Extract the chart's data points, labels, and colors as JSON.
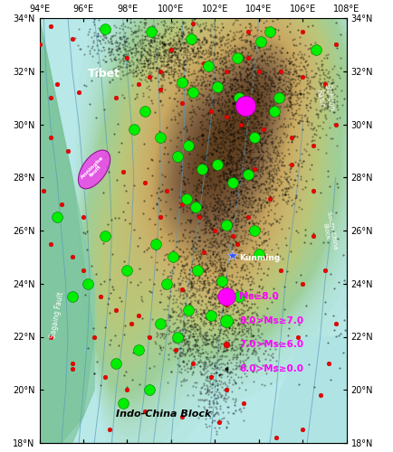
{
  "lon_min": 94,
  "lon_max": 108,
  "lat_min": 18,
  "lat_max": 34,
  "xticks": [
    94,
    96,
    98,
    100,
    102,
    104,
    106,
    108
  ],
  "yticks": [
    18,
    20,
    22,
    24,
    26,
    28,
    30,
    32,
    34
  ],
  "ms8_earthquakes": [
    [
      103.4,
      30.7
    ]
  ],
  "ms7_earthquakes": [
    [
      97.0,
      33.6
    ],
    [
      99.1,
      33.5
    ],
    [
      100.9,
      33.2
    ],
    [
      104.1,
      33.1
    ],
    [
      106.6,
      32.8
    ],
    [
      100.5,
      31.6
    ],
    [
      101.0,
      31.2
    ],
    [
      102.1,
      31.4
    ],
    [
      103.1,
      31.0
    ],
    [
      104.9,
      31.0
    ],
    [
      104.7,
      30.5
    ],
    [
      103.8,
      29.5
    ],
    [
      98.3,
      29.8
    ],
    [
      99.5,
      29.5
    ],
    [
      100.3,
      28.8
    ],
    [
      101.4,
      28.3
    ],
    [
      102.1,
      28.5
    ],
    [
      103.5,
      28.1
    ],
    [
      100.7,
      27.2
    ],
    [
      101.1,
      26.9
    ],
    [
      102.5,
      26.2
    ],
    [
      103.8,
      26.0
    ],
    [
      99.3,
      25.5
    ],
    [
      100.1,
      25.0
    ],
    [
      101.2,
      24.5
    ],
    [
      102.3,
      24.1
    ],
    [
      103.1,
      23.5
    ],
    [
      100.8,
      23.0
    ],
    [
      99.5,
      22.5
    ],
    [
      100.3,
      22.0
    ],
    [
      98.5,
      21.5
    ],
    [
      97.5,
      21.0
    ],
    [
      99.0,
      20.0
    ],
    [
      97.8,
      19.5
    ],
    [
      104.5,
      33.5
    ],
    [
      101.7,
      32.2
    ],
    [
      103.0,
      32.5
    ],
    [
      98.8,
      30.5
    ],
    [
      100.8,
      29.2
    ],
    [
      102.8,
      27.8
    ],
    [
      104.0,
      25.1
    ],
    [
      99.8,
      24.0
    ],
    [
      101.8,
      22.8
    ],
    [
      98.0,
      24.5
    ],
    [
      97.0,
      25.8
    ],
    [
      96.2,
      24.0
    ],
    [
      95.5,
      23.5
    ],
    [
      94.8,
      26.5
    ]
  ],
  "ms6_earthquakes": [
    [
      94.5,
      33.7
    ],
    [
      95.5,
      33.2
    ],
    [
      98.0,
      32.5
    ],
    [
      99.5,
      32.0
    ],
    [
      100.0,
      32.8
    ],
    [
      101.5,
      32.3
    ],
    [
      102.5,
      32.0
    ],
    [
      103.5,
      32.5
    ],
    [
      104.0,
      32.0
    ],
    [
      105.0,
      32.0
    ],
    [
      106.0,
      31.8
    ],
    [
      107.0,
      31.5
    ],
    [
      94.8,
      31.5
    ],
    [
      95.8,
      31.2
    ],
    [
      97.5,
      31.0
    ],
    [
      98.5,
      31.5
    ],
    [
      99.0,
      31.8
    ],
    [
      100.5,
      30.8
    ],
    [
      101.8,
      30.5
    ],
    [
      102.5,
      30.3
    ],
    [
      103.2,
      30.0
    ],
    [
      104.2,
      29.8
    ],
    [
      105.5,
      29.5
    ],
    [
      106.5,
      29.2
    ],
    [
      94.5,
      29.5
    ],
    [
      95.3,
      29.0
    ],
    [
      96.5,
      28.5
    ],
    [
      97.8,
      28.2
    ],
    [
      98.8,
      27.8
    ],
    [
      99.8,
      27.5
    ],
    [
      100.5,
      27.0
    ],
    [
      101.3,
      26.5
    ],
    [
      102.0,
      26.0
    ],
    [
      103.0,
      25.5
    ],
    [
      104.2,
      25.0
    ],
    [
      105.0,
      24.5
    ],
    [
      106.0,
      24.0
    ],
    [
      107.0,
      24.5
    ],
    [
      94.2,
      27.5
    ],
    [
      95.0,
      27.0
    ],
    [
      94.5,
      25.5
    ],
    [
      95.5,
      25.0
    ],
    [
      96.0,
      24.5
    ],
    [
      96.8,
      23.5
    ],
    [
      97.5,
      23.0
    ],
    [
      98.2,
      22.5
    ],
    [
      99.0,
      22.0
    ],
    [
      100.2,
      21.5
    ],
    [
      101.0,
      21.0
    ],
    [
      101.8,
      20.5
    ],
    [
      102.5,
      20.0
    ],
    [
      103.3,
      19.5
    ],
    [
      97.0,
      20.5
    ],
    [
      98.0,
      20.0
    ],
    [
      98.8,
      19.2
    ],
    [
      95.5,
      21.0
    ],
    [
      94.5,
      22.0
    ],
    [
      93.8,
      23.0
    ],
    [
      107.5,
      22.5
    ],
    [
      107.2,
      21.0
    ],
    [
      106.0,
      18.5
    ],
    [
      105.8,
      22.0
    ],
    [
      106.5,
      25.8
    ],
    [
      106.5,
      27.5
    ],
    [
      105.5,
      28.5
    ],
    [
      104.5,
      27.2
    ],
    [
      103.5,
      26.5
    ],
    [
      102.8,
      25.8
    ],
    [
      96.0,
      26.5
    ],
    [
      94.5,
      31.0
    ],
    [
      107.5,
      30.0
    ],
    [
      107.5,
      33.0
    ],
    [
      106.0,
      33.5
    ],
    [
      99.5,
      31.3
    ],
    [
      103.8,
      28.3
    ],
    [
      102.5,
      23.2
    ],
    [
      99.5,
      26.5
    ],
    [
      101.5,
      25.2
    ],
    [
      100.5,
      23.8
    ],
    [
      98.5,
      22.8
    ],
    [
      96.5,
      22.0
    ],
    [
      95.5,
      20.8
    ],
    [
      97.2,
      18.5
    ],
    [
      100.5,
      19.0
    ],
    [
      102.2,
      18.8
    ],
    [
      94.0,
      33.0
    ],
    [
      93.5,
      31.0
    ],
    [
      93.2,
      29.0
    ],
    [
      104.8,
      18.2
    ],
    [
      106.8,
      19.8
    ],
    [
      103.5,
      33.5
    ],
    [
      101.0,
      33.8
    ]
  ],
  "kunming_lon": 102.8,
  "kunming_lat": 25.05,
  "anninghe_lon": 96.5,
  "anninghe_lat": 28.3,
  "legend_items": [
    {
      "label": "Ms≥8.0",
      "color": "#ff00ff",
      "ms": 14
    },
    {
      "label": "8.0>Ms≥7.0",
      "color": "#00ee00",
      "ms": 10
    },
    {
      "label": "7.0>Ms≥6.0",
      "color": "#ee0000",
      "ms": 5
    },
    {
      "label": "6.0>Ms≥0.0",
      "color": "#111111",
      "ms": 2
    }
  ]
}
